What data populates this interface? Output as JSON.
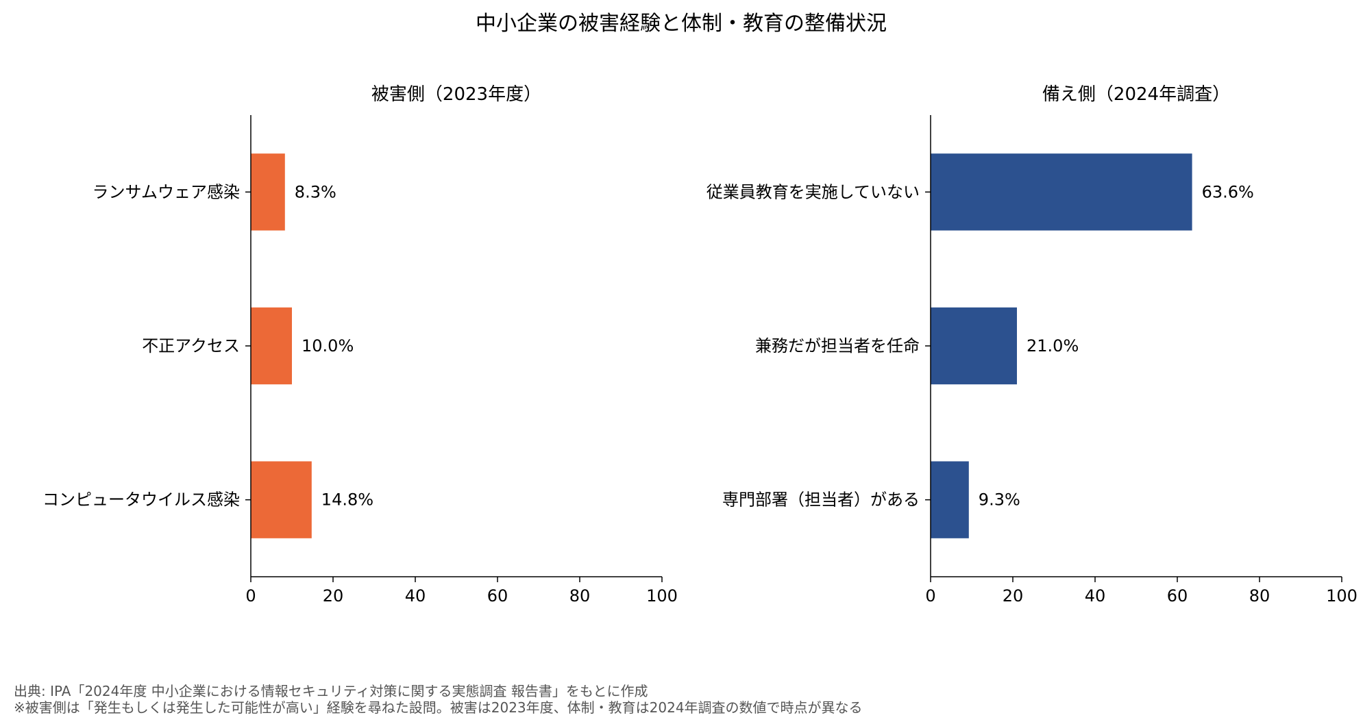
{
  "suptitle": "中小企業の被害経験と体制・教育の整備状況",
  "notes": {
    "source": "出典: IPA「2024年度 中小企業における情報セキュリティ対策に関する実態調査 報告書」をもとに作成",
    "remark": "※被害側は「発生もしくは発生した可能性が高い」経験を尋ねた設問。被害は2023年度、体制・教育は2024年調査の数値で時点が異なる"
  },
  "chart_data": [
    {
      "type": "bar",
      "orientation": "horizontal",
      "title": "被害側（2023年度）",
      "categories": [
        "ランサムウェア感染",
        "不正アクセス",
        "コンピュータウイルス感染"
      ],
      "values": [
        8.3,
        10.0,
        14.8
      ],
      "value_labels": [
        "8.3%",
        "10.0%",
        "14.8%"
      ],
      "xlim": [
        0,
        100
      ],
      "xticks": [
        0,
        20,
        40,
        60,
        80,
        100
      ],
      "xticklabels": [
        "0",
        "20",
        "40",
        "60",
        "80",
        "100"
      ],
      "color": "#ec6937",
      "grid": false
    },
    {
      "type": "bar",
      "orientation": "horizontal",
      "title": "備え側（2024年調査）",
      "categories": [
        "従業員教育を実施していない",
        "兼務だが担当者を任命",
        "専門部署（担当者）がある"
      ],
      "values": [
        63.6,
        21.0,
        9.3
      ],
      "value_labels": [
        "63.6%",
        "21.0%",
        "9.3%"
      ],
      "xlim": [
        0,
        100
      ],
      "xticks": [
        0,
        20,
        40,
        60,
        80,
        100
      ],
      "xticklabels": [
        "0",
        "20",
        "40",
        "60",
        "80",
        "100"
      ],
      "color": "#2c518f",
      "grid": false
    }
  ]
}
